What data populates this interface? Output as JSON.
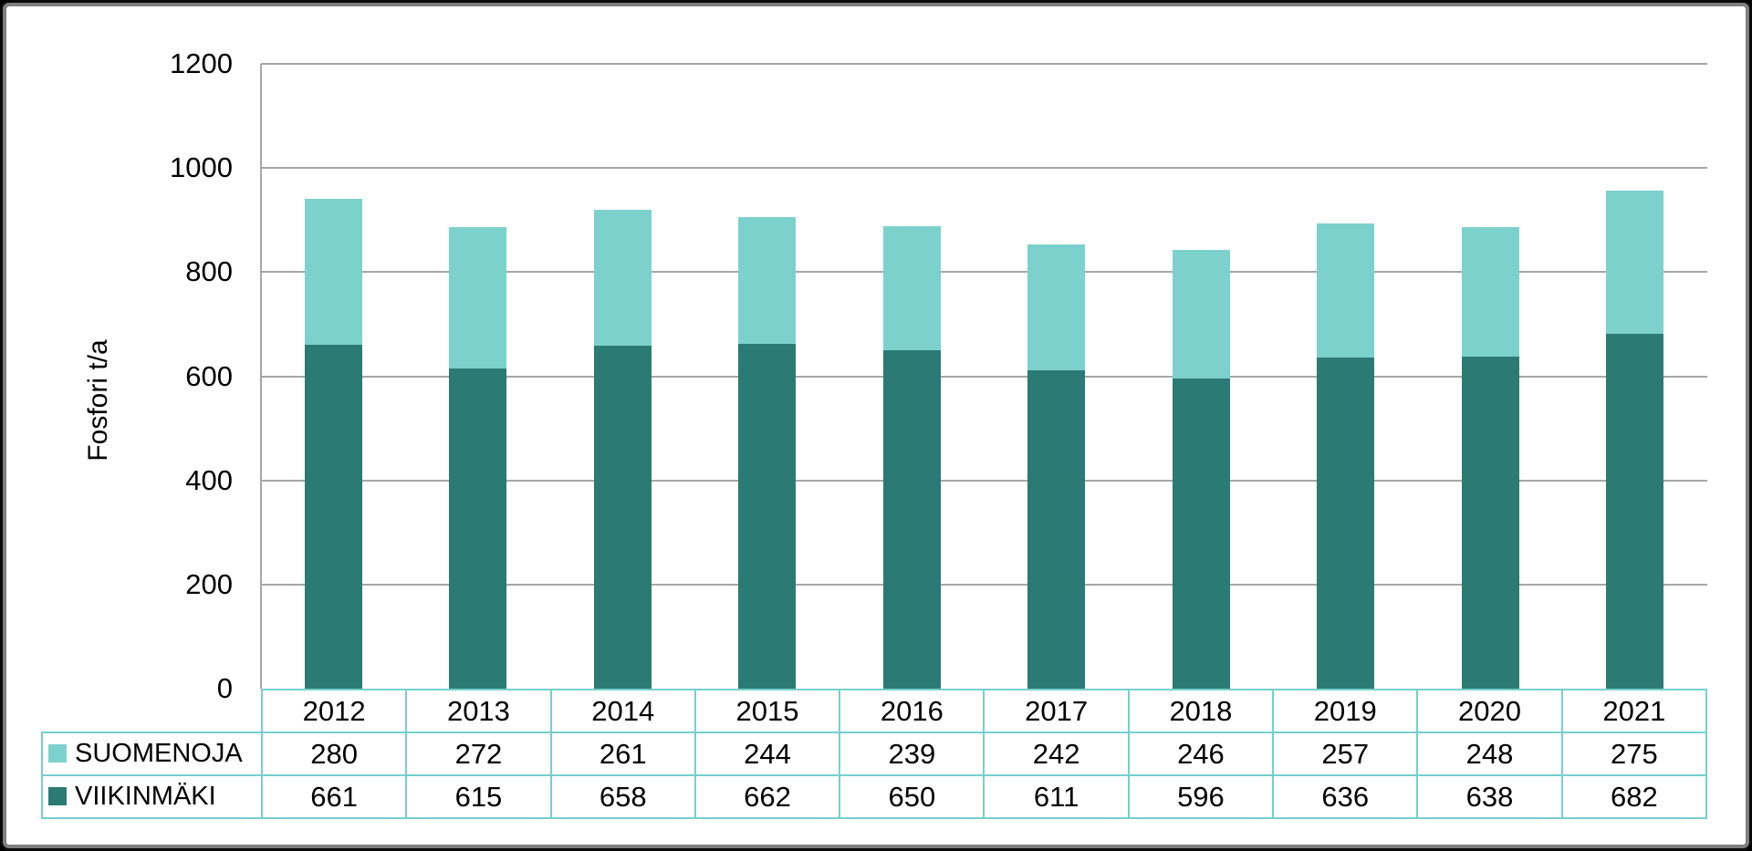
{
  "chart_data": {
    "type": "bar",
    "stacked": true,
    "title": "",
    "xlabel": "",
    "ylabel": "Fosfori t/a",
    "ylim": [
      0,
      1200
    ],
    "yticks": [
      0,
      200,
      400,
      600,
      800,
      1000,
      1200
    ],
    "grid": true,
    "legend_position": "table-left",
    "categories": [
      "2012",
      "2013",
      "2014",
      "2015",
      "2016",
      "2017",
      "2018",
      "2019",
      "2020",
      "2021"
    ],
    "series": [
      {
        "name": "SUOMENOJA",
        "color": "#7dd1cc",
        "stack_order": "top",
        "values": [
          280,
          272,
          261,
          244,
          239,
          242,
          246,
          257,
          248,
          275
        ]
      },
      {
        "name": "VIIKINMÄKI",
        "color": "#2b7a73",
        "stack_order": "bottom",
        "values": [
          661,
          615,
          658,
          662,
          650,
          611,
          596,
          636,
          638,
          682
        ]
      }
    ]
  },
  "colors": {
    "gridline": "#a6a6a6",
    "axis_line": "#a6a6a6",
    "table_border": "#76cfce",
    "frame_outer": "#0a0a0a",
    "frame_inner": "#7f7f7f",
    "background": "#ffffff",
    "text": "#000000"
  }
}
